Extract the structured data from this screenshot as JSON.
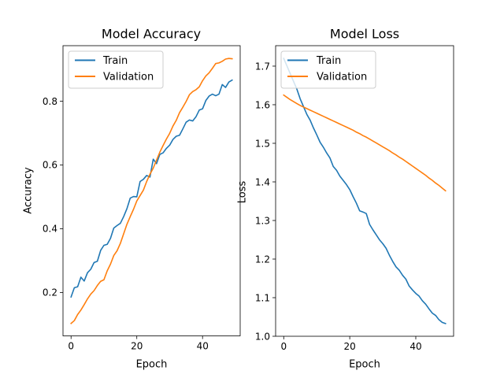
{
  "chart_data": [
    {
      "type": "line",
      "title": "Model Accuracy",
      "xlabel": "Epoch",
      "ylabel": "Accuracy",
      "xlim": [
        -2.45,
        51.45
      ],
      "ylim": [
        0.064,
        0.974
      ],
      "xticks": [
        0,
        20,
        40
      ],
      "yticks": [
        0.2,
        0.4,
        0.6,
        0.8
      ],
      "ytick_labels": [
        "0.2",
        "0.4",
        "0.6",
        "0.8"
      ],
      "grid": false,
      "legend_position": "top-left",
      "series": [
        {
          "name": "Train",
          "color": "#1f77b4",
          "x": [
            0,
            1,
            2,
            3,
            4,
            5,
            6,
            7,
            8,
            9,
            10,
            11,
            12,
            13,
            14,
            15,
            16,
            17,
            18,
            19,
            20,
            21,
            22,
            23,
            24,
            25,
            26,
            27,
            28,
            29,
            30,
            31,
            32,
            33,
            34,
            35,
            36,
            37,
            38,
            39,
            40,
            41,
            42,
            43,
            44,
            45,
            46,
            47,
            48,
            49
          ],
          "y": [
            0.186,
            0.215,
            0.218,
            0.248,
            0.236,
            0.262,
            0.273,
            0.294,
            0.298,
            0.332,
            0.348,
            0.351,
            0.37,
            0.402,
            0.41,
            0.417,
            0.438,
            0.463,
            0.496,
            0.501,
            0.5,
            0.548,
            0.555,
            0.567,
            0.562,
            0.618,
            0.604,
            0.633,
            0.638,
            0.652,
            0.662,
            0.68,
            0.69,
            0.693,
            0.713,
            0.734,
            0.741,
            0.738,
            0.751,
            0.772,
            0.776,
            0.802,
            0.816,
            0.822,
            0.817,
            0.822,
            0.852,
            0.843,
            0.86,
            0.866
          ]
        },
        {
          "name": "Validation",
          "color": "#ff7f0e",
          "x": [
            0,
            1,
            2,
            3,
            4,
            5,
            6,
            7,
            8,
            9,
            10,
            11,
            12,
            13,
            14,
            15,
            16,
            17,
            18,
            19,
            20,
            21,
            22,
            23,
            24,
            25,
            26,
            27,
            28,
            29,
            30,
            31,
            32,
            33,
            34,
            35,
            36,
            37,
            38,
            39,
            40,
            41,
            42,
            43,
            44,
            45,
            46,
            47,
            48,
            49
          ],
          "y": [
            0.103,
            0.112,
            0.131,
            0.145,
            0.162,
            0.18,
            0.195,
            0.206,
            0.222,
            0.235,
            0.24,
            0.268,
            0.289,
            0.316,
            0.331,
            0.354,
            0.384,
            0.414,
            0.438,
            0.461,
            0.487,
            0.504,
            0.521,
            0.548,
            0.571,
            0.59,
            0.615,
            0.64,
            0.661,
            0.681,
            0.699,
            0.722,
            0.74,
            0.764,
            0.781,
            0.799,
            0.82,
            0.83,
            0.836,
            0.845,
            0.864,
            0.879,
            0.889,
            0.903,
            0.918,
            0.92,
            0.925,
            0.932,
            0.934,
            0.933
          ]
        }
      ]
    },
    {
      "type": "line",
      "title": "Model Loss",
      "xlabel": "Epoch",
      "ylabel": "Loss",
      "xlim": [
        -2.45,
        51.45
      ],
      "ylim": [
        1.0,
        1.753
      ],
      "xticks": [
        0,
        20,
        40
      ],
      "yticks": [
        1.0,
        1.1,
        1.2,
        1.3,
        1.4,
        1.5,
        1.6,
        1.7
      ],
      "ytick_labels": [
        "1.0",
        "1.1",
        "1.2",
        "1.3",
        "1.4",
        "1.5",
        "1.6",
        "1.7"
      ],
      "grid": false,
      "legend_position": "top-left",
      "series": [
        {
          "name": "Train",
          "color": "#1f77b4",
          "x": [
            0,
            1,
            2,
            3,
            4,
            5,
            6,
            7,
            8,
            9,
            10,
            11,
            12,
            13,
            14,
            15,
            16,
            17,
            18,
            19,
            20,
            21,
            22,
            23,
            24,
            25,
            26,
            27,
            28,
            29,
            30,
            31,
            32,
            33,
            34,
            35,
            36,
            37,
            38,
            39,
            40,
            41,
            42,
            43,
            44,
            45,
            46,
            47,
            48,
            49
          ],
          "y": [
            1.72,
            1.7,
            1.68,
            1.66,
            1.64,
            1.615,
            1.595,
            1.575,
            1.56,
            1.54,
            1.522,
            1.503,
            1.49,
            1.475,
            1.462,
            1.44,
            1.43,
            1.415,
            1.404,
            1.393,
            1.38,
            1.362,
            1.345,
            1.325,
            1.322,
            1.318,
            1.29,
            1.276,
            1.263,
            1.25,
            1.24,
            1.228,
            1.21,
            1.194,
            1.18,
            1.171,
            1.158,
            1.148,
            1.13,
            1.12,
            1.111,
            1.104,
            1.092,
            1.083,
            1.071,
            1.06,
            1.054,
            1.043,
            1.036,
            1.033
          ]
        },
        {
          "name": "Validation",
          "color": "#ff7f0e",
          "x": [
            0,
            1,
            2,
            3,
            4,
            5,
            6,
            7,
            8,
            9,
            10,
            11,
            12,
            13,
            14,
            15,
            16,
            17,
            18,
            19,
            20,
            21,
            22,
            23,
            24,
            25,
            26,
            27,
            28,
            29,
            30,
            31,
            32,
            33,
            34,
            35,
            36,
            37,
            38,
            39,
            40,
            41,
            42,
            43,
            44,
            45,
            46,
            47,
            48,
            49
          ],
          "y": [
            1.625,
            1.619,
            1.613,
            1.608,
            1.603,
            1.598,
            1.594,
            1.59,
            1.586,
            1.582,
            1.578,
            1.574,
            1.57,
            1.566,
            1.562,
            1.558,
            1.554,
            1.55,
            1.546,
            1.542,
            1.538,
            1.534,
            1.529,
            1.525,
            1.52,
            1.516,
            1.511,
            1.506,
            1.501,
            1.496,
            1.491,
            1.486,
            1.481,
            1.475,
            1.47,
            1.464,
            1.459,
            1.453,
            1.447,
            1.441,
            1.435,
            1.429,
            1.423,
            1.417,
            1.41,
            1.404,
            1.397,
            1.391,
            1.384,
            1.377
          ]
        }
      ]
    }
  ]
}
